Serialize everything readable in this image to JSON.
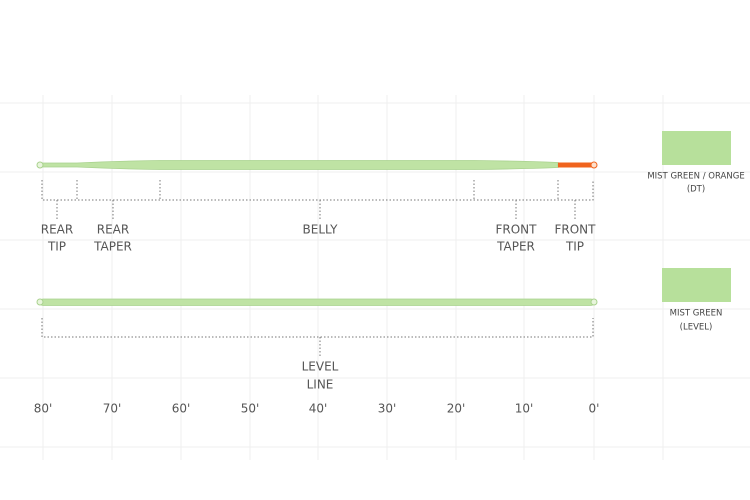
{
  "dt_line": {
    "sections": [
      {
        "lines": [
          "REAR",
          "TIP"
        ]
      },
      {
        "lines": [
          "REAR",
          "TAPER"
        ]
      },
      {
        "lines": [
          "BELLY"
        ]
      },
      {
        "lines": [
          "FRONT",
          "TAPER"
        ]
      },
      {
        "lines": [
          "FRONT",
          "TIP"
        ]
      }
    ]
  },
  "level_line": {
    "lines": [
      "LEVEL",
      "LINE"
    ]
  },
  "axis_labels": [
    "80'",
    "70'",
    "60'",
    "50'",
    "40'",
    "30'",
    "20'",
    "10'",
    "0'"
  ],
  "swatches": [
    {
      "label": "MIST GREEN / ORANGE",
      "sub": "(DT)"
    },
    {
      "label": "MIST GREEN",
      "sub": "(LEVEL)"
    }
  ]
}
